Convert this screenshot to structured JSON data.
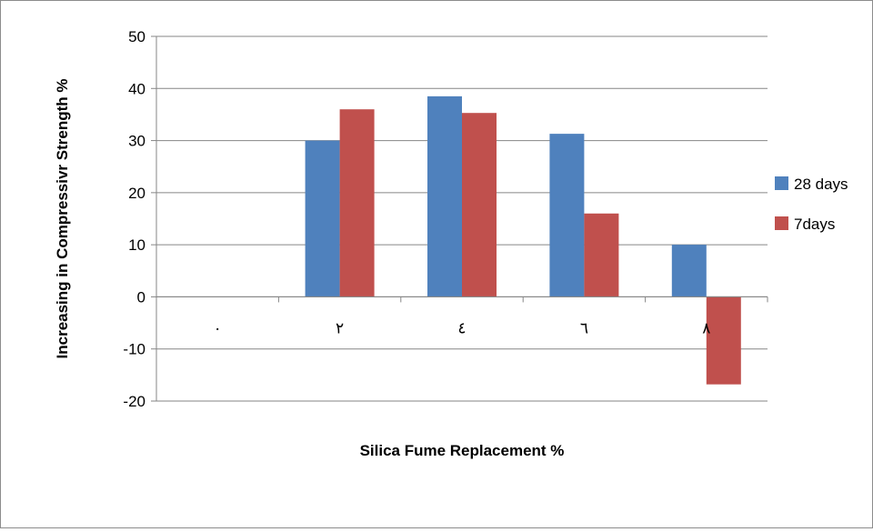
{
  "chart_data": {
    "type": "bar",
    "title": "",
    "xlabel": "Silica Fume Replacement %",
    "ylabel": "Increasing in Compressivr Strength %",
    "categories": [
      "٠",
      "٢",
      "٤",
      "٦",
      "٨"
    ],
    "series": [
      {
        "name": "28 days",
        "color": "#4f81bd",
        "values": [
          0,
          30,
          38.5,
          31.3,
          10
        ]
      },
      {
        "name": "7days",
        "color": "#c0504d",
        "values": [
          0,
          36,
          35.3,
          16,
          -16.8
        ]
      }
    ],
    "ylim": [
      -20,
      50
    ],
    "yticks": [
      -20,
      -10,
      0,
      10,
      20,
      30,
      40,
      50
    ],
    "grid": true,
    "legend": "right"
  }
}
